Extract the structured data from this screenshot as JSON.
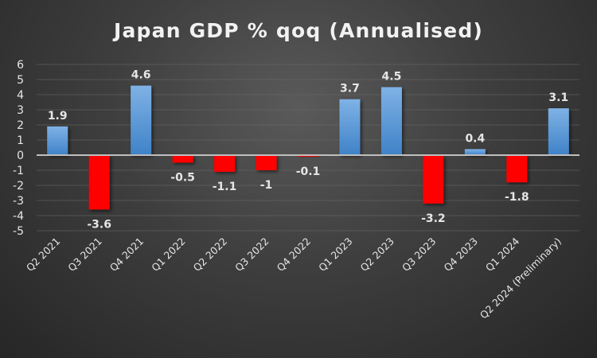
{
  "chart_data": {
    "type": "bar",
    "title": "Japan GDP % qoq (Annualised)",
    "xlabel": "",
    "ylabel": "",
    "ylim": [
      -5,
      6
    ],
    "yticks": [
      6,
      5,
      4,
      3,
      2,
      1,
      0,
      -1,
      -2,
      -3,
      -4,
      -5
    ],
    "grid": true,
    "legend": "none",
    "categories": [
      "Q2 2021",
      "Q3 2021",
      "Q4 2021",
      "Q1 2022",
      "Q2 2022",
      "Q3 2022",
      "Q4 2022",
      "Q1 2023",
      "Q2 2023",
      "Q3 2023",
      "Q4 2023",
      "Q1 2024",
      "Q2 2024 (Preliminary)"
    ],
    "values": [
      1.9,
      -3.6,
      4.6,
      -0.5,
      -1.1,
      -1,
      -0.1,
      3.7,
      4.5,
      -3.2,
      0.4,
      -1.8,
      3.1
    ],
    "data_labels": [
      "1.9",
      "-3.6",
      "4.6",
      "-0.5",
      "-1.1",
      "-1",
      "-0.1",
      "3.7",
      "4.5",
      "-3.2",
      "0.4",
      "-1.8",
      "3.1"
    ],
    "colors": {
      "positive": "#5b9bd5",
      "negative": "#ff0000",
      "background": "#404040"
    }
  }
}
